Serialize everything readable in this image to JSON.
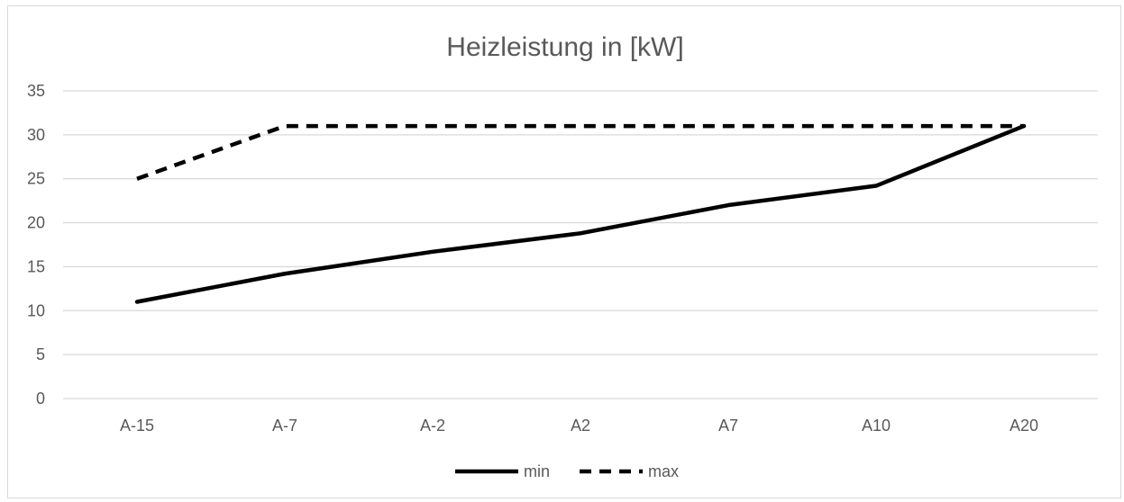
{
  "chart_data": {
    "type": "line",
    "title": "Heizleistung in [kW]",
    "xlabel": "",
    "ylabel": "",
    "categories": [
      "A-15",
      "A-7",
      "A-2",
      "A2",
      "A7",
      "A10",
      "A20"
    ],
    "ylim": [
      0,
      35
    ],
    "yticks": [
      0,
      5,
      10,
      15,
      20,
      25,
      30,
      35
    ],
    "grid": true,
    "legend_position": "bottom",
    "series": [
      {
        "name": "min",
        "values": [
          11,
          14.2,
          16.7,
          18.8,
          22,
          24.2,
          31
        ],
        "style": "solid",
        "color": "#000000"
      },
      {
        "name": "max",
        "values": [
          25,
          31,
          31,
          31,
          31,
          31,
          31
        ],
        "style": "dashed",
        "color": "#000000"
      }
    ]
  }
}
